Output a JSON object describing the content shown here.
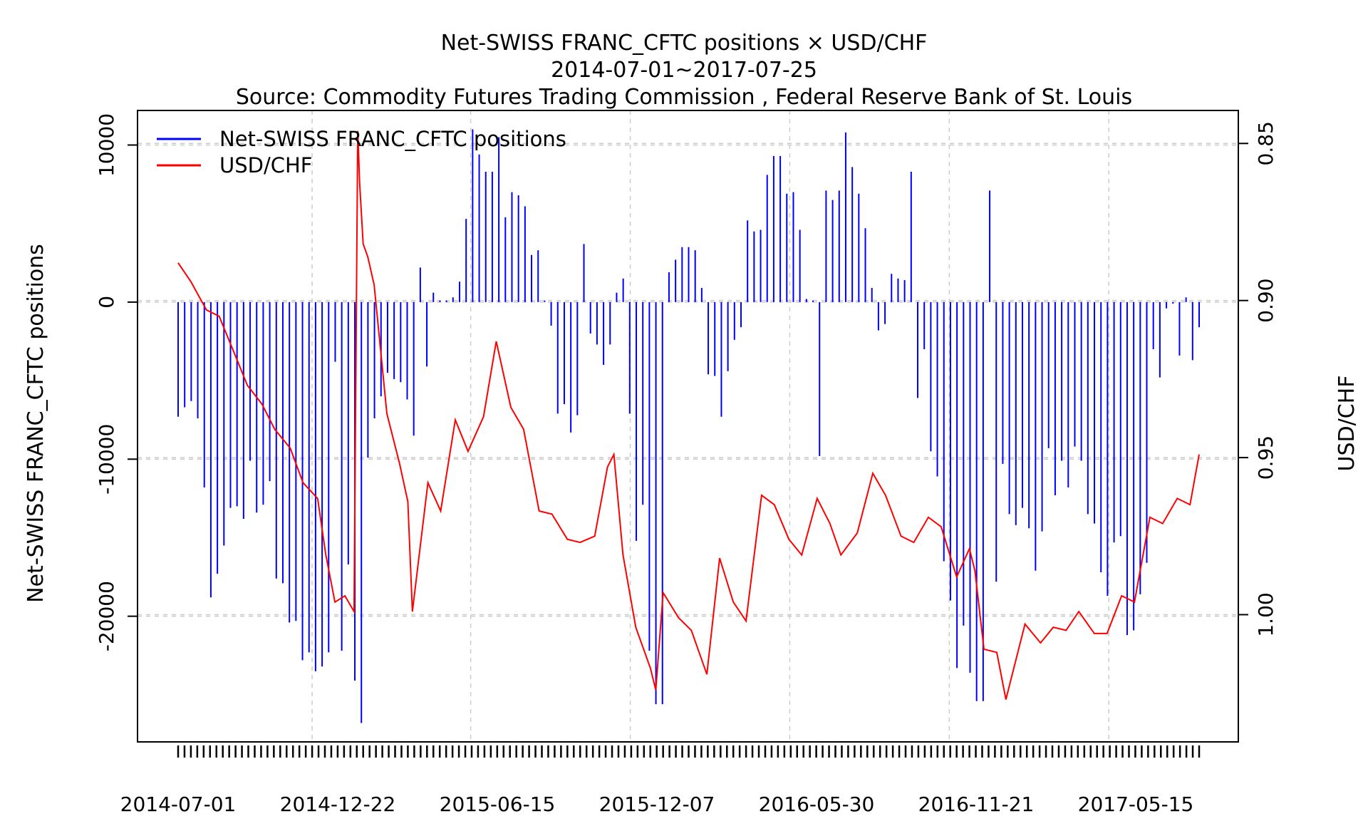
{
  "chart_data": {
    "type": "bar+line",
    "title": "Net-SWISS FRANC_CFTC positions × USD/CHF",
    "subtitle_dates": "2014-07-01~2017-07-25",
    "subtitle_source": "Source: Commodity Futures Trading Commission , Federal Reserve Bank of St. Louis",
    "ylabel_left": "Net-SWISS FRANC_CFTC positions",
    "ylabel_right": "USD/CHF",
    "x_tick_labels": [
      "2014-07-01",
      "2014-12-22",
      "2015-06-15",
      "2015-12-07",
      "2016-05-30",
      "2016-11-21",
      "2017-05-15"
    ],
    "y_left_ticks": [
      "10000",
      "0",
      "-10000",
      "-20000"
    ],
    "y_right_ticks": [
      "0.85",
      "0.90",
      "0.95",
      "1.00"
    ],
    "y_left_range": [
      -28000,
      12200
    ],
    "y_right_range_inverted": [
      0.8395,
      1.0405
    ],
    "grid": true,
    "legend_position": "top-left",
    "series": [
      {
        "name": "Net-SWISS FRANC_CFTC positions",
        "kind": "bar",
        "axis": "left",
        "color": "#0000ff",
        "values": [
          -7300,
          -6700,
          -6300,
          -7400,
          -11800,
          -18800,
          -17300,
          -15500,
          -13100,
          -13000,
          -13800,
          -10100,
          -13400,
          -12900,
          -11400,
          -17600,
          -17900,
          -20400,
          -20300,
          -22800,
          -22300,
          -23500,
          -23200,
          -22300,
          -3800,
          -22200,
          -16700,
          -24100,
          -26800,
          -9900,
          -7400,
          -6000,
          -4500,
          -4900,
          -5100,
          -6200,
          -8500,
          2200,
          -4100,
          600,
          100,
          100,
          300,
          1300,
          5300,
          11000,
          9400,
          8300,
          8300,
          10500,
          5400,
          7000,
          6800,
          6100,
          3000,
          3300,
          100,
          -1500,
          -7100,
          -6500,
          -8300,
          -7200,
          3700,
          -2000,
          -2700,
          -4000,
          -2700,
          600,
          1500,
          -7100,
          -15200,
          -12900,
          -22200,
          -25600,
          -25600,
          1900,
          2700,
          3500,
          3500,
          3300,
          900,
          -4600,
          -4700,
          -7300,
          -4400,
          -2400,
          -1600,
          5200,
          4500,
          4600,
          8100,
          9300,
          9300,
          6900,
          7000,
          4600,
          200,
          100,
          -9800,
          7100,
          6500,
          7100,
          10800,
          8600,
          6900,
          4700,
          900,
          -1800,
          -1400,
          1800,
          1500,
          1400,
          8300,
          -6100,
          -3000,
          -9500,
          -11100,
          -16500,
          -19000,
          -23300,
          -20600,
          -23600,
          -25400,
          -25400,
          7100,
          -17800,
          -10300,
          -13500,
          -14200,
          -13100,
          -14400,
          -17100,
          -14600,
          -9300,
          -12300,
          -10100,
          -11800,
          -9200,
          -10100,
          -13500,
          -14100,
          -17200,
          -18700,
          -15300,
          -14900,
          -21200,
          -20900,
          -18600,
          -16600,
          -3000,
          -4800,
          -400,
          -100,
          -3400,
          300,
          -3700,
          -1600
        ]
      },
      {
        "name": "USD/CHF",
        "kind": "line",
        "axis": "right",
        "color": "#ff0000",
        "x_dates": [
          "2014-07-01",
          "2014-07-15",
          "2014-08-01",
          "2014-08-15",
          "2014-09-01",
          "2014-09-15",
          "2014-10-01",
          "2014-10-15",
          "2014-11-01",
          "2014-11-15",
          "2014-12-01",
          "2014-12-10",
          "2014-12-20",
          "2014-12-31",
          "2015-01-10",
          "2015-01-14",
          "2015-01-15",
          "2015-01-16",
          "2015-01-20",
          "2015-01-25",
          "2015-02-01",
          "2015-02-15",
          "2015-03-01",
          "2015-03-10",
          "2015-03-15",
          "2015-04-01",
          "2015-04-15",
          "2015-05-01",
          "2015-05-15",
          "2015-06-01",
          "2015-06-15",
          "2015-07-01",
          "2015-07-15",
          "2015-08-01",
          "2015-08-15",
          "2015-09-01",
          "2015-09-15",
          "2015-10-01",
          "2015-10-15",
          "2015-10-22",
          "2015-11-01",
          "2015-11-15",
          "2015-12-01",
          "2015-12-07",
          "2015-12-15",
          "2016-01-01",
          "2016-01-15",
          "2016-02-01",
          "2016-02-15",
          "2016-03-01",
          "2016-03-15",
          "2016-04-01",
          "2016-04-15",
          "2016-05-01",
          "2016-05-15",
          "2016-06-01",
          "2016-06-15",
          "2016-06-27",
          "2016-07-15",
          "2016-08-01",
          "2016-08-15",
          "2016-09-01",
          "2016-09-15",
          "2016-10-01",
          "2016-10-15",
          "2016-11-01",
          "2016-11-15",
          "2016-11-21",
          "2016-12-01",
          "2016-12-15",
          "2016-12-25",
          "2017-01-01",
          "2017-01-15",
          "2017-02-01",
          "2017-02-15",
          "2017-03-01",
          "2017-03-15",
          "2017-04-01",
          "2017-04-15",
          "2017-05-01",
          "2017-05-15",
          "2017-06-01",
          "2017-06-15",
          "2017-07-01",
          "2017-07-15",
          "2017-07-25"
        ],
        "values": [
          0.888,
          0.894,
          0.903,
          0.905,
          0.917,
          0.927,
          0.933,
          0.941,
          0.947,
          0.958,
          0.963,
          0.981,
          0.996,
          0.994,
          0.999,
          0.846,
          0.853,
          0.862,
          0.882,
          0.886,
          0.895,
          0.936,
          0.952,
          0.964,
          0.999,
          0.958,
          0.967,
          0.938,
          0.948,
          0.937,
          0.913,
          0.934,
          0.941,
          0.967,
          0.968,
          0.976,
          0.977,
          0.975,
          0.953,
          0.949,
          0.981,
          1.004,
          1.017,
          1.024,
          0.993,
          1.001,
          1.005,
          1.019,
          0.982,
          0.996,
          1.002,
          0.962,
          0.965,
          0.976,
          0.981,
          0.963,
          0.971,
          0.981,
          0.974,
          0.955,
          0.962,
          0.975,
          0.977,
          0.969,
          0.972,
          0.988,
          0.979,
          0.986,
          1.011,
          1.012,
          1.027,
          1.019,
          1.003,
          1.009,
          1.004,
          1.005,
          0.999,
          1.006,
          1.006,
          0.994,
          0.996,
          0.969,
          0.971,
          0.963,
          0.965,
          0.949
        ]
      }
    ]
  }
}
